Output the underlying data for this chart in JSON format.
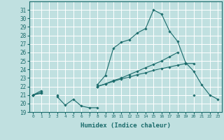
{
  "xlabel": "Humidex (Indice chaleur)",
  "bg_color": "#c0e0e0",
  "grid_color": "#ffffff",
  "line_color": "#1a6b6b",
  "x": [
    0,
    1,
    2,
    3,
    4,
    5,
    6,
    7,
    8,
    9,
    10,
    11,
    12,
    13,
    14,
    15,
    16,
    17,
    18,
    19,
    20,
    21,
    22,
    23
  ],
  "line1": [
    21.0,
    21.3,
    null,
    20.8,
    19.8,
    20.5,
    19.7,
    19.5,
    19.5,
    null,
    null,
    null,
    null,
    null,
    null,
    null,
    null,
    null,
    null,
    null,
    21.0,
    null,
    null,
    null
  ],
  "line2": [
    21.0,
    21.5,
    null,
    21.0,
    null,
    null,
    null,
    null,
    22.0,
    22.3,
    22.6,
    22.9,
    23.1,
    23.4,
    23.6,
    23.9,
    24.1,
    24.3,
    24.5,
    24.7,
    24.7,
    null,
    null,
    null
  ],
  "line3": [
    21.0,
    21.2,
    null,
    null,
    null,
    null,
    null,
    null,
    22.0,
    22.3,
    22.7,
    23.0,
    23.4,
    23.8,
    24.2,
    24.6,
    25.0,
    25.5,
    26.0,
    null,
    null,
    null,
    null,
    null
  ],
  "line4": [
    21.0,
    null,
    null,
    null,
    null,
    null,
    null,
    null,
    22.2,
    23.3,
    26.5,
    27.2,
    27.5,
    28.3,
    28.8,
    31.0,
    30.5,
    28.5,
    27.3,
    24.8,
    23.8,
    22.2,
    21.0,
    20.5
  ],
  "ylim": [
    19,
    32
  ],
  "xlim": [
    -0.5,
    23.5
  ],
  "yticks": [
    19,
    20,
    21,
    22,
    23,
    24,
    25,
    26,
    27,
    28,
    29,
    30,
    31
  ]
}
